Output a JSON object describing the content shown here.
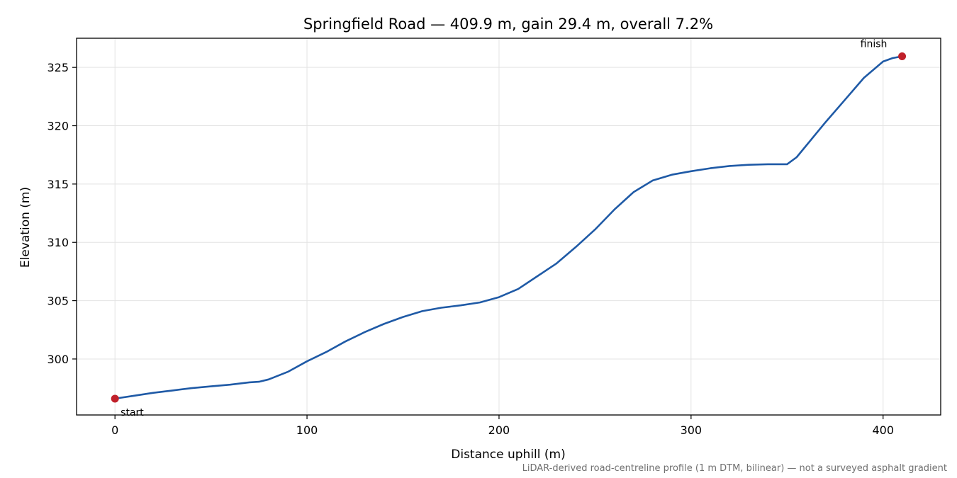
{
  "chart_data": {
    "type": "line",
    "title": "Springfield Road — 409.9 m, gain 29.4 m, overall 7.2%",
    "xlabel": "Distance uphill (m)",
    "ylabel": "Elevation (m)",
    "xlim": [
      -20,
      430
    ],
    "ylim": [
      295.2,
      327.5
    ],
    "xticks": [
      0,
      100,
      200,
      300,
      400
    ],
    "yticks": [
      300,
      305,
      310,
      315,
      320,
      325
    ],
    "grid": true,
    "footnote": "LiDAR-derived road-centreline profile (1 m DTM, bilinear) — not a surveyed asphalt gradient",
    "colors": {
      "line": "#1f5aa6",
      "marker": "#c0202a",
      "grid": "#e3e3e3",
      "footnote": "#707070"
    },
    "series": [
      {
        "x": [
          0,
          10,
          20,
          30,
          40,
          50,
          60,
          70,
          75,
          80,
          90,
          100,
          110,
          120,
          130,
          140,
          150,
          160,
          170,
          180,
          190,
          200,
          210,
          220,
          230,
          240,
          250,
          260,
          270,
          280,
          290,
          300,
          310,
          320,
          330,
          340,
          350,
          355,
          360,
          370,
          380,
          390,
          400,
          405,
          409.9
        ],
        "y": [
          296.6,
          296.85,
          297.1,
          297.3,
          297.5,
          297.65,
          297.8,
          298.0,
          298.05,
          298.25,
          298.9,
          299.8,
          300.6,
          301.5,
          302.3,
          303.0,
          303.6,
          304.1,
          304.4,
          304.6,
          304.85,
          305.3,
          306.0,
          307.1,
          308.2,
          309.6,
          311.1,
          312.8,
          314.3,
          315.3,
          315.8,
          316.1,
          316.35,
          316.55,
          316.65,
          316.7,
          316.7,
          317.3,
          318.3,
          320.3,
          322.2,
          324.1,
          325.5,
          325.8,
          325.95
        ]
      }
    ],
    "annotations": [
      {
        "label": "start",
        "x": 0,
        "y": 296.6
      },
      {
        "label": "finish",
        "x": 409.9,
        "y": 325.95
      }
    ]
  }
}
